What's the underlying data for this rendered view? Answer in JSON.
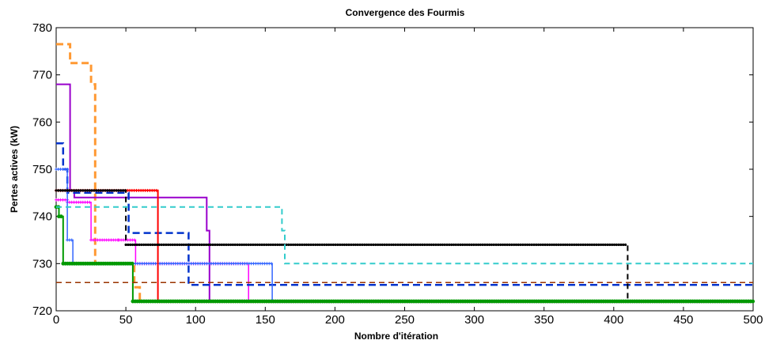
{
  "chart_data": {
    "type": "line",
    "title": "Convergence des Fourmis",
    "xlabel": "Nombre d'itération",
    "ylabel": "Pertes actives (kW)",
    "xlim": [
      0,
      500
    ],
    "ylim": [
      720,
      780
    ],
    "xticks": [
      "0",
      "50",
      "100",
      "150",
      "200",
      "250",
      "300",
      "350",
      "400",
      "450",
      "500"
    ],
    "yticks": [
      "720",
      "730",
      "740",
      "750",
      "760",
      "770",
      "780"
    ],
    "grid": false,
    "legend": "none",
    "series": [
      {
        "color": "#ff9933",
        "style": "dashed",
        "width": 3,
        "marker": "none",
        "x": [
          0,
          10,
          10,
          25,
          25,
          28,
          28,
          56,
          56,
          60,
          60,
          500
        ],
        "y": [
          776.5,
          776.5,
          772.5,
          772.5,
          768,
          768,
          730,
          730,
          725,
          725,
          722,
          722
        ]
      },
      {
        "color": "#ff00ff",
        "style": "solid",
        "width": 1.5,
        "marker": "plus",
        "x": [
          0,
          8,
          8,
          25,
          25,
          45,
          45,
          57,
          57,
          138,
          138,
          500
        ],
        "y": [
          743.5,
          743.5,
          743,
          743,
          735,
          735,
          735,
          735,
          730,
          730,
          722,
          722
        ]
      },
      {
        "color": "#9900cc",
        "style": "solid",
        "width": 2,
        "marker": "none",
        "x": [
          0,
          7,
          7,
          10,
          10,
          13,
          13,
          108,
          108,
          110,
          110,
          500
        ],
        "y": [
          768,
          768,
          768,
          768,
          745.5,
          745.5,
          744,
          744,
          737,
          737,
          722,
          722
        ]
      },
      {
        "color": "#0033cc",
        "style": "dashed",
        "width": 2.5,
        "marker": "none",
        "x": [
          0,
          5,
          5,
          8,
          8,
          52,
          52,
          95,
          95,
          500
        ],
        "y": [
          755.5,
          755.5,
          750,
          750,
          745,
          745,
          736.5,
          736.5,
          725.5,
          725.5
        ]
      },
      {
        "color": "#3366ff",
        "style": "solid",
        "width": 1.5,
        "marker": "plus",
        "x": [
          0,
          8,
          8,
          12,
          12,
          155,
          155,
          500
        ],
        "y": [
          750,
          750,
          735,
          735,
          730,
          730,
          722,
          722
        ]
      },
      {
        "color": "#ff0000",
        "style": "solid",
        "width": 2,
        "marker": "star",
        "x": [
          0,
          73,
          73,
          500
        ],
        "y": [
          745.5,
          745.5,
          722,
          722
        ]
      },
      {
        "color": "#000000",
        "style": "dashed",
        "width": 2,
        "marker": "dot",
        "x": [
          0,
          50,
          50,
          410,
          410,
          500
        ],
        "y": [
          745.5,
          745.5,
          734,
          734,
          722,
          722
        ]
      },
      {
        "color": "#009900",
        "style": "solid",
        "width": 2,
        "marker": "circle",
        "x": [
          0,
          2,
          2,
          5,
          5,
          55,
          55,
          500
        ],
        "y": [
          742,
          742,
          740,
          740,
          730,
          730,
          722,
          722
        ]
      },
      {
        "color": "#33cccc",
        "style": "dashed",
        "width": 2,
        "marker": "none",
        "x": [
          0,
          162,
          162,
          164,
          164,
          500
        ],
        "y": [
          742,
          742,
          737,
          737,
          730,
          730
        ]
      },
      {
        "color": "#993300",
        "style": "dashed",
        "width": 1.5,
        "marker": "none",
        "x": [
          0,
          500
        ],
        "y": [
          726,
          726
        ]
      }
    ]
  }
}
